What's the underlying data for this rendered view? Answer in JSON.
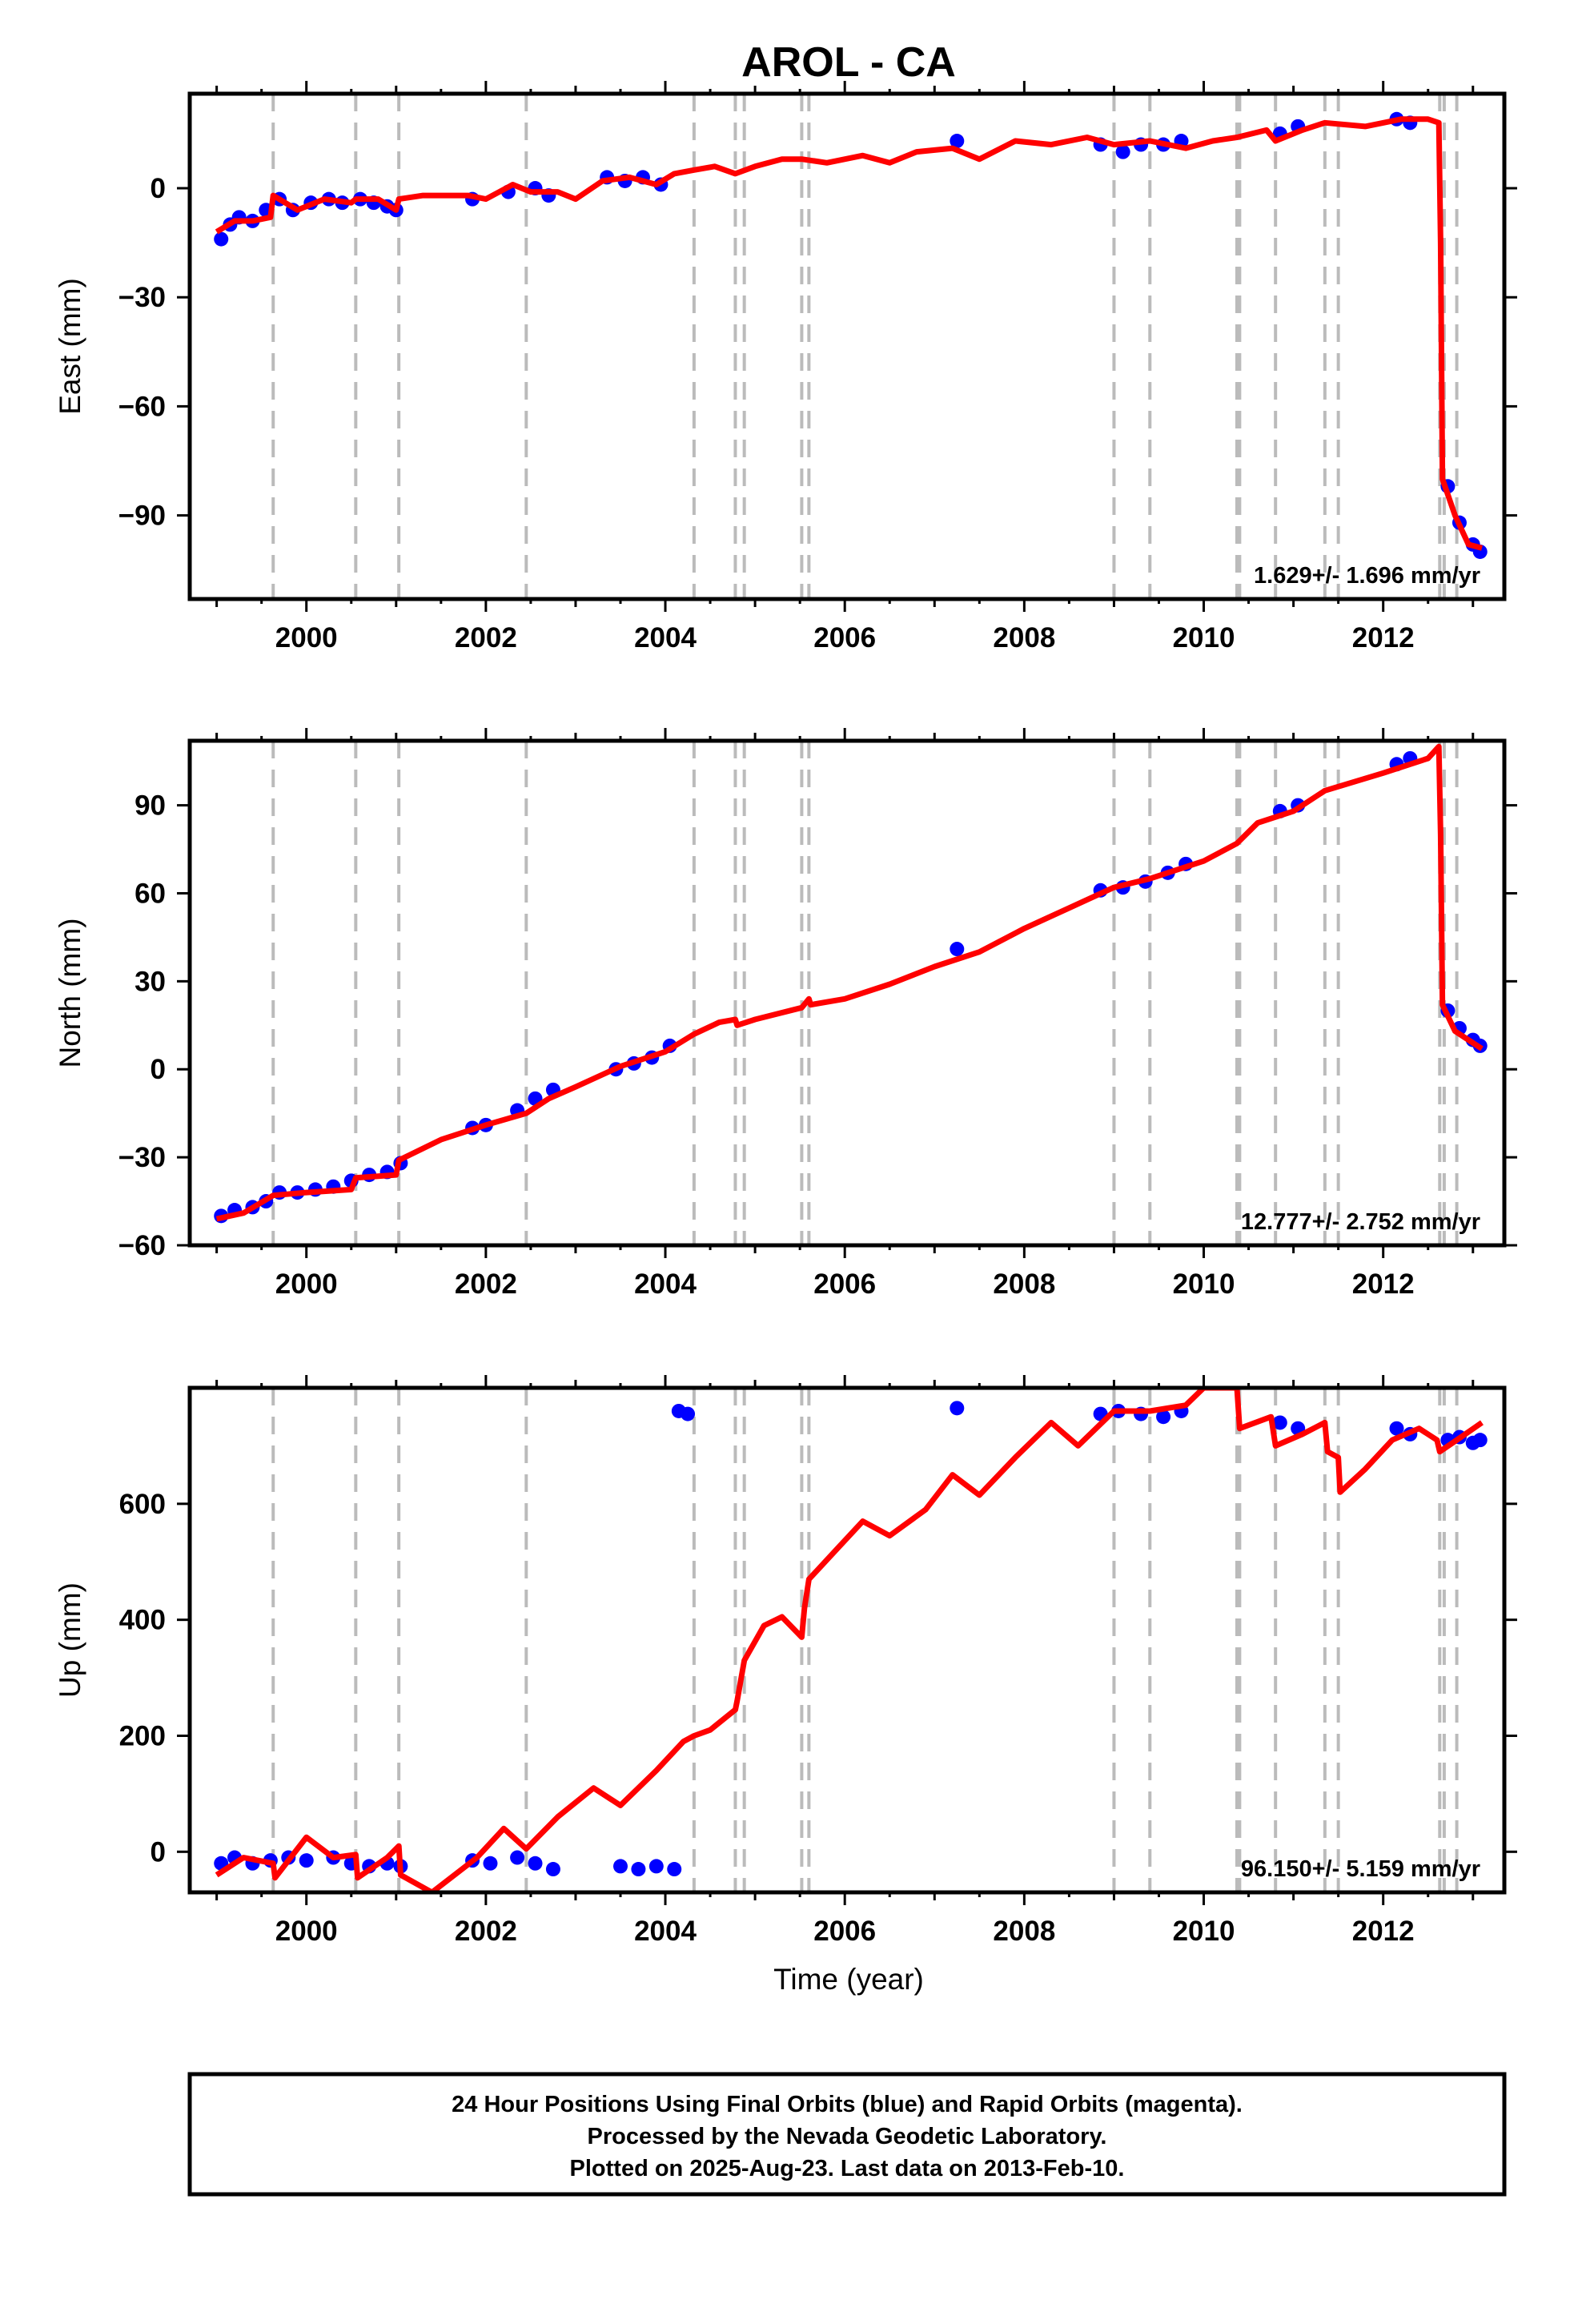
{
  "chart_data": {
    "title": "AROL - CA",
    "type": "scatter",
    "x_axis": {
      "label": "Time (year)",
      "range": [
        1998.7,
        2013.35
      ],
      "ticks": [
        "2000",
        "2002",
        "2004",
        "2006",
        "2008",
        "2010",
        "2012"
      ]
    },
    "event_lines": [
      1999.63,
      2000.55,
      2001.03,
      2002.45,
      2004.32,
      2004.78,
      2004.88,
      2005.52,
      2005.6,
      2009.0,
      2009.4,
      2010.37,
      2010.4,
      2010.8,
      2011.35,
      2011.5,
      2012.63,
      2012.68,
      2012.82
    ],
    "legend_note": {
      "line1": "24 Hour Positions Using Final Orbits (blue) and Rapid Orbits (magenta).",
      "line2": "Processed by the Nevada Geodetic Laboratory.",
      "line3": "Plotted on 2025-Aug-23. Last data on 2013-Feb-10."
    },
    "colors": {
      "daily_positions": "#0000ff",
      "model_fit": "#ff0000",
      "event_lines": "#bbbbbb"
    },
    "panels": [
      {
        "name": "east",
        "ylabel": "East (mm)",
        "ylim": [
          -113,
          26
        ],
        "yticks": [
          0,
          -30,
          -60,
          -90
        ],
        "ytick_labels": [
          "0",
          "−30",
          "−60",
          "−90"
        ],
        "rate_text": "1.629+/- 1.696 mm/yr",
        "model_fit": [
          [
            1999.0,
            -12
          ],
          [
            1999.2,
            -9
          ],
          [
            1999.4,
            -9
          ],
          [
            1999.6,
            -8
          ],
          [
            1999.63,
            -2
          ],
          [
            1999.9,
            -6
          ],
          [
            2000.2,
            -3
          ],
          [
            2000.5,
            -4
          ],
          [
            2000.55,
            -3
          ],
          [
            2000.8,
            -3
          ],
          [
            2001.0,
            -6
          ],
          [
            2001.03,
            -3
          ],
          [
            2001.3,
            -2
          ],
          [
            2001.8,
            -2
          ],
          [
            2002.0,
            -3
          ],
          [
            2002.3,
            1
          ],
          [
            2002.5,
            -1
          ],
          [
            2002.8,
            -1
          ],
          [
            2003.0,
            -3
          ],
          [
            2003.3,
            2
          ],
          [
            2003.6,
            3
          ],
          [
            2003.9,
            1
          ],
          [
            2004.1,
            4
          ],
          [
            2004.32,
            5
          ],
          [
            2004.55,
            6
          ],
          [
            2004.78,
            4
          ],
          [
            2005.0,
            6
          ],
          [
            2005.3,
            8
          ],
          [
            2005.52,
            8
          ],
          [
            2005.8,
            7
          ],
          [
            2006.2,
            9
          ],
          [
            2006.5,
            7
          ],
          [
            2006.8,
            10
          ],
          [
            2007.2,
            11
          ],
          [
            2007.5,
            8
          ],
          [
            2007.9,
            13
          ],
          [
            2008.3,
            12
          ],
          [
            2008.7,
            14
          ],
          [
            2009.0,
            12
          ],
          [
            2009.4,
            13
          ],
          [
            2009.8,
            11
          ],
          [
            2010.1,
            13
          ],
          [
            2010.37,
            14
          ],
          [
            2010.7,
            16
          ],
          [
            2010.8,
            13
          ],
          [
            2011.1,
            16
          ],
          [
            2011.35,
            18
          ],
          [
            2011.8,
            17
          ],
          [
            2012.2,
            19
          ],
          [
            2012.5,
            19
          ],
          [
            2012.62,
            18
          ],
          [
            2012.64,
            -15
          ],
          [
            2012.66,
            -80
          ],
          [
            2012.8,
            -90
          ],
          [
            2012.95,
            -98
          ],
          [
            2013.1,
            -99
          ]
        ],
        "daily_positions": [
          [
            1999.05,
            -14
          ],
          [
            1999.15,
            -10
          ],
          [
            1999.25,
            -8
          ],
          [
            1999.4,
            -9
          ],
          [
            1999.55,
            -6
          ],
          [
            1999.7,
            -3
          ],
          [
            1999.85,
            -6
          ],
          [
            2000.05,
            -4
          ],
          [
            2000.25,
            -3
          ],
          [
            2000.4,
            -4
          ],
          [
            2000.6,
            -3
          ],
          [
            2000.75,
            -4
          ],
          [
            2000.9,
            -5
          ],
          [
            2001.0,
            -6
          ],
          [
            2001.85,
            -3
          ],
          [
            2002.25,
            -1
          ],
          [
            2002.55,
            0
          ],
          [
            2002.7,
            -2
          ],
          [
            2003.35,
            3
          ],
          [
            2003.55,
            2
          ],
          [
            2003.75,
            3
          ],
          [
            2003.95,
            1
          ],
          [
            2007.25,
            13
          ],
          [
            2008.85,
            12
          ],
          [
            2009.1,
            10
          ],
          [
            2009.3,
            12
          ],
          [
            2009.55,
            12
          ],
          [
            2009.75,
            13
          ],
          [
            2010.85,
            15
          ],
          [
            2011.05,
            17
          ],
          [
            2012.15,
            19
          ],
          [
            2012.3,
            18
          ],
          [
            2012.72,
            -82
          ],
          [
            2012.85,
            -92
          ],
          [
            2013.0,
            -98
          ],
          [
            2013.08,
            -100
          ]
        ]
      },
      {
        "name": "north",
        "ylabel": "North (mm)",
        "ylim": [
          -60,
          112
        ],
        "yticks": [
          90,
          60,
          30,
          0,
          -30,
          -60
        ],
        "ytick_labels": [
          "90",
          "60",
          "30",
          "0",
          "−30",
          "−60"
        ],
        "rate_text": "12.777+/- 2.752 mm/yr",
        "model_fit": [
          [
            1999.0,
            -51
          ],
          [
            1999.3,
            -49
          ],
          [
            1999.63,
            -43
          ],
          [
            2000.0,
            -42
          ],
          [
            2000.5,
            -41
          ],
          [
            2000.55,
            -37
          ],
          [
            2001.0,
            -36
          ],
          [
            2001.03,
            -31
          ],
          [
            2001.5,
            -24
          ],
          [
            2002.0,
            -19
          ],
          [
            2002.45,
            -15
          ],
          [
            2002.7,
            -10
          ],
          [
            2003.0,
            -6
          ],
          [
            2003.5,
            1
          ],
          [
            2004.0,
            6
          ],
          [
            2004.32,
            12
          ],
          [
            2004.6,
            16
          ],
          [
            2004.78,
            17
          ],
          [
            2004.8,
            15
          ],
          [
            2005.0,
            17
          ],
          [
            2005.52,
            21
          ],
          [
            2005.6,
            24
          ],
          [
            2005.62,
            22
          ],
          [
            2006.0,
            24
          ],
          [
            2006.5,
            29
          ],
          [
            2007.0,
            35
          ],
          [
            2007.5,
            40
          ],
          [
            2008.0,
            48
          ],
          [
            2008.5,
            55
          ],
          [
            2009.0,
            62
          ],
          [
            2009.4,
            65
          ],
          [
            2010.0,
            71
          ],
          [
            2010.37,
            77
          ],
          [
            2010.6,
            84
          ],
          [
            2011.0,
            88
          ],
          [
            2011.35,
            95
          ],
          [
            2012.0,
            101
          ],
          [
            2012.5,
            106
          ],
          [
            2012.62,
            110
          ],
          [
            2012.64,
            80
          ],
          [
            2012.66,
            22
          ],
          [
            2012.8,
            13
          ],
          [
            2013.0,
            9
          ],
          [
            2013.1,
            7
          ]
        ],
        "daily_positions": [
          [
            1999.05,
            -50
          ],
          [
            1999.2,
            -48
          ],
          [
            1999.4,
            -47
          ],
          [
            1999.55,
            -45
          ],
          [
            1999.7,
            -42
          ],
          [
            1999.9,
            -42
          ],
          [
            2000.1,
            -41
          ],
          [
            2000.3,
            -40
          ],
          [
            2000.5,
            -38
          ],
          [
            2000.7,
            -36
          ],
          [
            2000.9,
            -35
          ],
          [
            2001.05,
            -32
          ],
          [
            2001.85,
            -20
          ],
          [
            2002.0,
            -19
          ],
          [
            2002.35,
            -14
          ],
          [
            2002.55,
            -10
          ],
          [
            2002.75,
            -7
          ],
          [
            2003.45,
            0
          ],
          [
            2003.65,
            2
          ],
          [
            2003.85,
            4
          ],
          [
            2004.05,
            8
          ],
          [
            2007.25,
            41
          ],
          [
            2008.85,
            61
          ],
          [
            2009.1,
            62
          ],
          [
            2009.35,
            64
          ],
          [
            2009.6,
            67
          ],
          [
            2009.8,
            70
          ],
          [
            2010.85,
            88
          ],
          [
            2011.05,
            90
          ],
          [
            2012.15,
            104
          ],
          [
            2012.3,
            106
          ],
          [
            2012.72,
            20
          ],
          [
            2012.85,
            14
          ],
          [
            2013.0,
            10
          ],
          [
            2013.08,
            8
          ]
        ]
      },
      {
        "name": "up",
        "ylabel": "Up (mm)",
        "ylim": [
          -70,
          800
        ],
        "yticks": [
          600,
          400,
          200,
          0
        ],
        "ytick_labels": [
          "600",
          "400",
          "200",
          "0"
        ],
        "rate_text": "96.150+/- 5.159 mm/yr",
        "model_fit": [
          [
            1999.0,
            -40
          ],
          [
            1999.3,
            -10
          ],
          [
            1999.63,
            -20
          ],
          [
            1999.65,
            -45
          ],
          [
            2000.0,
            25
          ],
          [
            2000.3,
            -10
          ],
          [
            2000.55,
            -5
          ],
          [
            2000.57,
            -45
          ],
          [
            2000.9,
            -10
          ],
          [
            2001.03,
            10
          ],
          [
            2001.05,
            -40
          ],
          [
            2001.4,
            -70
          ],
          [
            2001.9,
            -10
          ],
          [
            2002.2,
            40
          ],
          [
            2002.45,
            5
          ],
          [
            2002.8,
            60
          ],
          [
            2003.2,
            110
          ],
          [
            2003.5,
            80
          ],
          [
            2003.9,
            140
          ],
          [
            2004.2,
            190
          ],
          [
            2004.32,
            200
          ],
          [
            2004.5,
            210
          ],
          [
            2004.78,
            245
          ],
          [
            2004.8,
            260
          ],
          [
            2004.88,
            330
          ],
          [
            2005.1,
            390
          ],
          [
            2005.3,
            405
          ],
          [
            2005.52,
            370
          ],
          [
            2005.55,
            420
          ],
          [
            2005.6,
            470
          ],
          [
            2005.9,
            520
          ],
          [
            2006.2,
            570
          ],
          [
            2006.5,
            545
          ],
          [
            2006.9,
            590
          ],
          [
            2007.2,
            650
          ],
          [
            2007.5,
            615
          ],
          [
            2007.9,
            680
          ],
          [
            2008.3,
            740
          ],
          [
            2008.6,
            700
          ],
          [
            2009.0,
            760
          ],
          [
            2009.4,
            760
          ],
          [
            2009.8,
            770
          ],
          [
            2010.0,
            800
          ],
          [
            2010.37,
            800
          ],
          [
            2010.4,
            730
          ],
          [
            2010.75,
            750
          ],
          [
            2010.8,
            700
          ],
          [
            2011.1,
            720
          ],
          [
            2011.35,
            740
          ],
          [
            2011.38,
            690
          ],
          [
            2011.5,
            680
          ],
          [
            2011.52,
            620
          ],
          [
            2011.8,
            660
          ],
          [
            2012.1,
            710
          ],
          [
            2012.4,
            730
          ],
          [
            2012.6,
            710
          ],
          [
            2012.63,
            690
          ],
          [
            2012.82,
            710
          ],
          [
            2013.1,
            740
          ]
        ],
        "daily_positions": [
          [
            1999.05,
            -20
          ],
          [
            1999.2,
            -10
          ],
          [
            1999.4,
            -20
          ],
          [
            1999.6,
            -15
          ],
          [
            1999.8,
            -10
          ],
          [
            2000.0,
            -15
          ],
          [
            2000.3,
            -10
          ],
          [
            2000.5,
            -20
          ],
          [
            2000.7,
            -25
          ],
          [
            2000.9,
            -20
          ],
          [
            2001.05,
            -25
          ],
          [
            2001.85,
            -15
          ],
          [
            2002.05,
            -20
          ],
          [
            2002.35,
            -10
          ],
          [
            2002.55,
            -20
          ],
          [
            2002.75,
            -30
          ],
          [
            2003.5,
            -25
          ],
          [
            2003.7,
            -30
          ],
          [
            2003.9,
            -25
          ],
          [
            2004.1,
            -30
          ],
          [
            2004.15,
            760
          ],
          [
            2004.25,
            755
          ],
          [
            2007.25,
            765
          ],
          [
            2008.85,
            755
          ],
          [
            2009.05,
            760
          ],
          [
            2009.3,
            755
          ],
          [
            2009.55,
            750
          ],
          [
            2009.75,
            760
          ],
          [
            2010.85,
            740
          ],
          [
            2011.05,
            730
          ],
          [
            2012.15,
            730
          ],
          [
            2012.3,
            720
          ],
          [
            2012.72,
            710
          ],
          [
            2012.85,
            715
          ],
          [
            2013.0,
            705
          ],
          [
            2013.08,
            710
          ]
        ]
      }
    ]
  }
}
